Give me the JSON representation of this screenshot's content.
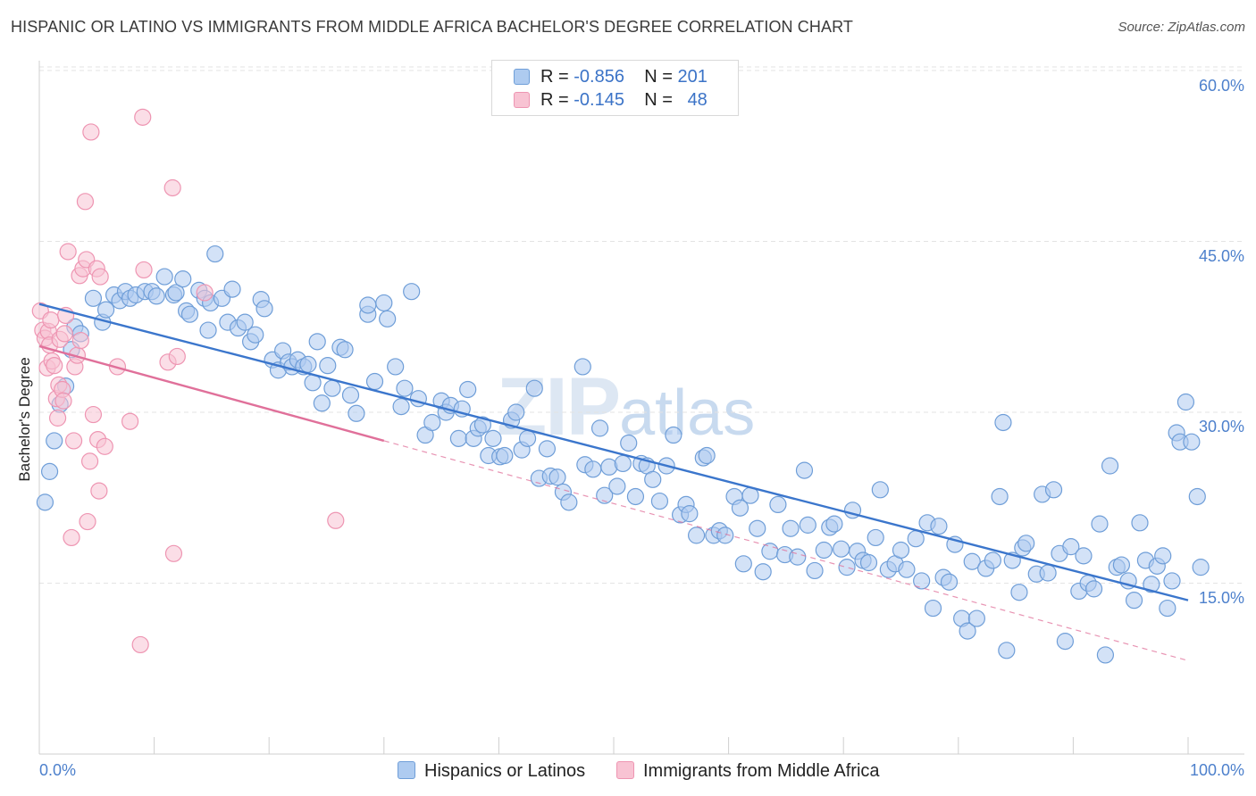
{
  "title": "HISPANIC OR LATINO VS IMMIGRANTS FROM MIDDLE AFRICA BACHELOR'S DEGREE CORRELATION CHART",
  "source": "Source: ZipAtlas.com",
  "watermark": {
    "zip": "ZIP",
    "atlas": "atlas"
  },
  "legend": {
    "rows": [
      {
        "r_label": "R =",
        "r_value": "-0.856",
        "n_label": "N =",
        "n_value": "201"
      },
      {
        "r_label": "R =",
        "r_value": "-0.145",
        "n_label": "N =",
        "n_value": "48"
      }
    ]
  },
  "colors": {
    "blue_fill": "#aecbf0",
    "blue_stroke": "#6f9ed8",
    "blue_line": "#3b76cc",
    "pink_fill": "#f8c3d3",
    "pink_stroke": "#ee95b2",
    "pink_line": "#e0709a",
    "grid": "#e3e3e3",
    "tick_text": "#4d80cc"
  },
  "chart_data": {
    "type": "scatter",
    "title": "HISPANIC OR LATINO VS IMMIGRANTS FROM MIDDLE AFRICA BACHELOR'S DEGREE CORRELATION CHART",
    "xlabel": "",
    "ylabel": "Bachelor's Degree",
    "xlim": [
      0,
      100
    ],
    "ylim": [
      0,
      63
    ],
    "x_tick_labels": [
      "0.0%",
      "100.0%"
    ],
    "y_ticks": [
      15,
      30,
      45,
      60
    ],
    "y_tick_labels": [
      "15.0%",
      "30.0%",
      "45.0%",
      "60.0%"
    ],
    "grid": "horizontal dashed",
    "legend_position": "top-center",
    "series": [
      {
        "name": "Hispanics or Latinos",
        "color": "#aecbf0",
        "trend": {
          "x": [
            0,
            100
          ],
          "y": [
            39.5,
            13.5
          ],
          "style": "solid"
        },
        "points": [
          [
            0.5,
            22.1
          ],
          [
            0.9,
            24.8
          ],
          [
            1.3,
            27.5
          ],
          [
            1.8,
            30.7
          ],
          [
            2.3,
            32.3
          ],
          [
            2.8,
            35.5
          ],
          [
            3.1,
            37.5
          ],
          [
            3.6,
            36.9
          ],
          [
            4.7,
            40.0
          ],
          [
            5.5,
            37.9
          ],
          [
            5.8,
            39.0
          ],
          [
            6.5,
            40.3
          ],
          [
            7.0,
            39.8
          ],
          [
            7.5,
            40.6
          ],
          [
            7.9,
            40.0
          ],
          [
            8.4,
            40.3
          ],
          [
            9.2,
            40.6
          ],
          [
            9.8,
            40.6
          ],
          [
            10.2,
            40.2
          ],
          [
            10.9,
            41.9
          ],
          [
            11.7,
            40.3
          ],
          [
            11.9,
            40.5
          ],
          [
            12.5,
            41.7
          ],
          [
            12.8,
            38.9
          ],
          [
            13.1,
            38.6
          ],
          [
            13.9,
            40.7
          ],
          [
            14.4,
            40.0
          ],
          [
            14.9,
            39.6
          ],
          [
            14.7,
            37.2
          ],
          [
            15.3,
            43.9
          ],
          [
            15.9,
            40.0
          ],
          [
            16.4,
            37.9
          ],
          [
            16.8,
            40.8
          ],
          [
            17.3,
            37.4
          ],
          [
            17.9,
            37.9
          ],
          [
            18.4,
            36.2
          ],
          [
            18.8,
            36.8
          ],
          [
            19.3,
            39.9
          ],
          [
            19.6,
            39.1
          ],
          [
            20.3,
            34.6
          ],
          [
            20.8,
            33.7
          ],
          [
            21.2,
            35.4
          ],
          [
            21.7,
            34.4
          ],
          [
            22.0,
            34.0
          ],
          [
            22.5,
            34.6
          ],
          [
            23.0,
            34.0
          ],
          [
            23.4,
            34.2
          ],
          [
            23.8,
            32.6
          ],
          [
            24.2,
            36.2
          ],
          [
            24.6,
            30.8
          ],
          [
            25.1,
            34.1
          ],
          [
            25.5,
            32.1
          ],
          [
            26.2,
            35.7
          ],
          [
            26.6,
            35.5
          ],
          [
            27.1,
            31.5
          ],
          [
            27.6,
            29.9
          ],
          [
            28.6,
            38.6
          ],
          [
            28.6,
            39.4
          ],
          [
            29.2,
            32.7
          ],
          [
            30.0,
            39.6
          ],
          [
            30.3,
            38.2
          ],
          [
            31.0,
            34.0
          ],
          [
            31.5,
            30.5
          ],
          [
            31.8,
            32.1
          ],
          [
            32.4,
            40.6
          ],
          [
            33.0,
            31.2
          ],
          [
            33.6,
            28.0
          ],
          [
            34.2,
            29.1
          ],
          [
            35.0,
            31.0
          ],
          [
            35.4,
            30.0
          ],
          [
            35.8,
            30.6
          ],
          [
            36.5,
            27.7
          ],
          [
            36.8,
            30.3
          ],
          [
            37.3,
            32.0
          ],
          [
            37.8,
            27.7
          ],
          [
            38.2,
            28.6
          ],
          [
            38.6,
            28.9
          ],
          [
            39.1,
            26.2
          ],
          [
            39.5,
            27.7
          ],
          [
            40.1,
            26.1
          ],
          [
            40.5,
            26.2
          ],
          [
            41.1,
            29.3
          ],
          [
            41.5,
            30.0
          ],
          [
            42.0,
            26.7
          ],
          [
            42.5,
            27.7
          ],
          [
            43.1,
            32.1
          ],
          [
            43.5,
            24.2
          ],
          [
            44.2,
            26.8
          ],
          [
            44.5,
            24.4
          ],
          [
            45.1,
            24.3
          ],
          [
            45.6,
            23.0
          ],
          [
            46.1,
            22.1
          ],
          [
            47.3,
            34.0
          ],
          [
            47.5,
            25.4
          ],
          [
            48.2,
            25.0
          ],
          [
            48.8,
            28.6
          ],
          [
            49.2,
            22.7
          ],
          [
            49.6,
            25.2
          ],
          [
            50.3,
            23.5
          ],
          [
            50.8,
            25.5
          ],
          [
            51.3,
            27.3
          ],
          [
            51.9,
            22.6
          ],
          [
            52.4,
            25.5
          ],
          [
            52.9,
            25.3
          ],
          [
            53.4,
            24.1
          ],
          [
            54.0,
            22.2
          ],
          [
            54.6,
            25.3
          ],
          [
            55.2,
            28.0
          ],
          [
            55.8,
            21.0
          ],
          [
            56.3,
            21.9
          ],
          [
            56.6,
            21.1
          ],
          [
            57.2,
            19.2
          ],
          [
            57.8,
            26.0
          ],
          [
            58.1,
            26.2
          ],
          [
            58.7,
            19.2
          ],
          [
            59.2,
            19.6
          ],
          [
            59.7,
            19.2
          ],
          [
            60.5,
            22.6
          ],
          [
            61.0,
            21.6
          ],
          [
            61.3,
            16.7
          ],
          [
            61.9,
            22.7
          ],
          [
            62.5,
            19.8
          ],
          [
            63.0,
            16.0
          ],
          [
            63.6,
            17.8
          ],
          [
            64.3,
            21.9
          ],
          [
            64.9,
            17.5
          ],
          [
            65.4,
            19.8
          ],
          [
            66.0,
            17.3
          ],
          [
            66.6,
            24.9
          ],
          [
            66.9,
            20.1
          ],
          [
            67.5,
            16.1
          ],
          [
            68.3,
            17.9
          ],
          [
            68.8,
            19.9
          ],
          [
            69.2,
            20.2
          ],
          [
            69.8,
            18.0
          ],
          [
            70.3,
            16.4
          ],
          [
            70.8,
            21.4
          ],
          [
            71.2,
            17.8
          ],
          [
            71.7,
            17.0
          ],
          [
            72.2,
            16.8
          ],
          [
            72.8,
            19.0
          ],
          [
            73.2,
            23.2
          ],
          [
            73.9,
            16.2
          ],
          [
            74.5,
            16.7
          ],
          [
            75.0,
            17.9
          ],
          [
            75.5,
            16.2
          ],
          [
            76.3,
            18.9
          ],
          [
            76.8,
            15.2
          ],
          [
            77.3,
            20.3
          ],
          [
            77.8,
            12.8
          ],
          [
            78.3,
            20.0
          ],
          [
            78.7,
            15.5
          ],
          [
            79.2,
            15.1
          ],
          [
            79.7,
            18.4
          ],
          [
            80.3,
            11.9
          ],
          [
            80.8,
            10.8
          ],
          [
            81.2,
            16.9
          ],
          [
            81.6,
            11.9
          ],
          [
            82.4,
            16.3
          ],
          [
            83.0,
            17.0
          ],
          [
            83.6,
            22.6
          ],
          [
            83.9,
            29.1
          ],
          [
            84.2,
            9.1
          ],
          [
            84.7,
            17.0
          ],
          [
            85.3,
            14.2
          ],
          [
            85.6,
            18.1
          ],
          [
            85.9,
            18.5
          ],
          [
            86.8,
            15.8
          ],
          [
            87.3,
            22.8
          ],
          [
            87.8,
            15.9
          ],
          [
            88.3,
            23.2
          ],
          [
            88.8,
            17.6
          ],
          [
            89.3,
            9.9
          ],
          [
            89.8,
            18.2
          ],
          [
            90.5,
            14.3
          ],
          [
            90.9,
            17.4
          ],
          [
            91.3,
            15.0
          ],
          [
            91.8,
            14.5
          ],
          [
            92.3,
            20.2
          ],
          [
            92.8,
            8.7
          ],
          [
            93.2,
            25.3
          ],
          [
            93.8,
            16.4
          ],
          [
            94.2,
            16.6
          ],
          [
            94.8,
            15.2
          ],
          [
            95.3,
            13.5
          ],
          [
            95.8,
            20.3
          ],
          [
            96.3,
            17.0
          ],
          [
            96.8,
            14.9
          ],
          [
            97.3,
            16.5
          ],
          [
            97.8,
            17.4
          ],
          [
            98.2,
            12.8
          ],
          [
            98.6,
            15.2
          ],
          [
            99.0,
            28.2
          ],
          [
            99.3,
            27.4
          ],
          [
            99.8,
            30.9
          ],
          [
            100.3,
            27.4
          ],
          [
            100.8,
            22.6
          ],
          [
            101.1,
            16.4
          ]
        ]
      },
      {
        "name": "Immigrants from Middle Africa",
        "color": "#f8c3d3",
        "trend": {
          "x": [
            0,
            30
          ],
          "y": [
            35.8,
            27.5
          ],
          "style": "solid",
          "extended": {
            "x": [
              30,
              100
            ],
            "y": [
              27.5,
              8.2
            ],
            "style": "dashed"
          }
        },
        "points": [
          [
            0.1,
            38.9
          ],
          [
            0.3,
            37.2
          ],
          [
            0.5,
            36.5
          ],
          [
            0.7,
            33.9
          ],
          [
            0.8,
            37.1
          ],
          [
            0.9,
            35.9
          ],
          [
            1.0,
            38.1
          ],
          [
            1.1,
            34.5
          ],
          [
            1.3,
            34.1
          ],
          [
            1.5,
            31.2
          ],
          [
            1.6,
            29.5
          ],
          [
            1.7,
            32.4
          ],
          [
            1.8,
            36.4
          ],
          [
            2.0,
            32.0
          ],
          [
            2.1,
            31.0
          ],
          [
            2.2,
            36.9
          ],
          [
            2.3,
            38.5
          ],
          [
            2.5,
            44.1
          ],
          [
            2.8,
            19.0
          ],
          [
            3.0,
            27.5
          ],
          [
            3.1,
            34.0
          ],
          [
            3.3,
            35.0
          ],
          [
            3.5,
            42.0
          ],
          [
            3.6,
            36.3
          ],
          [
            3.8,
            42.6
          ],
          [
            4.0,
            48.5
          ],
          [
            4.1,
            43.4
          ],
          [
            4.2,
            20.4
          ],
          [
            4.4,
            25.7
          ],
          [
            4.5,
            54.6
          ],
          [
            4.7,
            29.8
          ],
          [
            5.0,
            42.6
          ],
          [
            5.1,
            27.6
          ],
          [
            5.2,
            23.1
          ],
          [
            5.3,
            41.9
          ],
          [
            5.7,
            27.0
          ],
          [
            6.8,
            34.0
          ],
          [
            7.9,
            29.2
          ],
          [
            8.8,
            9.6
          ],
          [
            9.0,
            55.9
          ],
          [
            9.1,
            42.5
          ],
          [
            11.2,
            34.4
          ],
          [
            11.6,
            49.7
          ],
          [
            11.7,
            17.6
          ],
          [
            12.0,
            34.9
          ],
          [
            14.4,
            40.5
          ],
          [
            25.8,
            20.5
          ]
        ]
      }
    ]
  },
  "bottom_legend": [
    {
      "label": "Hispanics or Latinos"
    },
    {
      "label": "Immigrants from Middle Africa"
    }
  ]
}
